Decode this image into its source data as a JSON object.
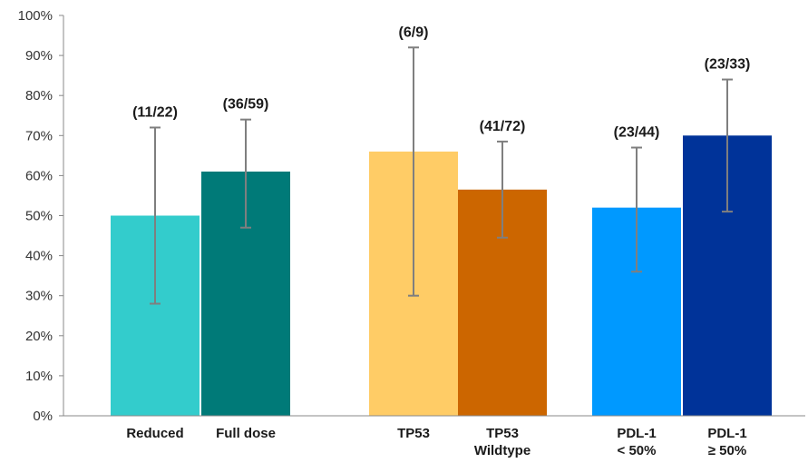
{
  "chart_data": {
    "type": "bar",
    "ylim": [
      0,
      100
    ],
    "yticks": [
      "0%",
      "10%",
      "20%",
      "30%",
      "40%",
      "50%",
      "60%",
      "70%",
      "80%",
      "90%",
      "100%"
    ],
    "grid": false,
    "legend": "none",
    "bars": [
      {
        "category": [
          "Reduced"
        ],
        "value": 50,
        "err_low": 28,
        "err_high": 72,
        "label": "(11/22)",
        "color": "#33CCCC"
      },
      {
        "category": [
          "Full dose"
        ],
        "value": 61,
        "err_low": 47,
        "err_high": 74,
        "label": "(36/59)",
        "color": "#007A78"
      },
      {
        "category": [
          "TP53"
        ],
        "value": 66,
        "err_low": 30,
        "err_high": 92,
        "label": "(6/9)",
        "color": "#FFCC66"
      },
      {
        "category": [
          "TP53",
          "Wildtype"
        ],
        "value": 56.5,
        "err_low": 44.5,
        "err_high": 68.5,
        "label": "(41/72)",
        "color": "#CC6600"
      },
      {
        "category": [
          "PDL-1",
          "< 50%"
        ],
        "value": 52,
        "err_low": 36,
        "err_high": 67,
        "label": "(23/44)",
        "color": "#0099FF"
      },
      {
        "category": [
          "PDL-1",
          "≥ 50%"
        ],
        "value": 70,
        "err_low": 51,
        "err_high": 84,
        "label": "(23/33)",
        "color": "#003399"
      }
    ],
    "errorbar_color": "#7F7F7F",
    "axis_color": "#888888"
  }
}
